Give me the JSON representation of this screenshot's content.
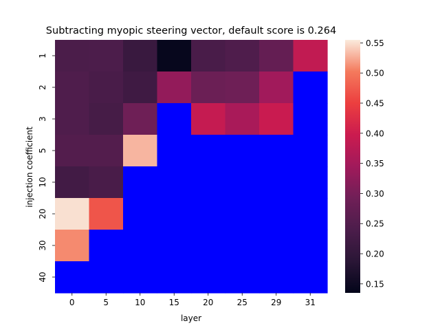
{
  "chart_data": {
    "type": "heatmap",
    "title": "Subtracting myopic steering vector, default score is 0.264",
    "xlabel": "layer",
    "ylabel": "injection coefficient",
    "x_categories": [
      "0",
      "5",
      "10",
      "15",
      "20",
      "25",
      "29",
      "31"
    ],
    "y_categories": [
      "1",
      "2",
      "3",
      "5",
      "10",
      "20",
      "30",
      "40"
    ],
    "values": [
      [
        0.238,
        0.24,
        0.21,
        0.14,
        0.235,
        0.245,
        0.275,
        0.385
      ],
      [
        0.245,
        0.235,
        0.22,
        0.33,
        0.285,
        0.29,
        0.345,
        null
      ],
      [
        0.245,
        0.23,
        0.29,
        null,
        0.39,
        0.355,
        0.395,
        null
      ],
      [
        0.25,
        0.25,
        0.53,
        null,
        null,
        null,
        null,
        null
      ],
      [
        0.225,
        0.235,
        null,
        null,
        null,
        null,
        null,
        null
      ],
      [
        0.55,
        0.47,
        null,
        null,
        null,
        null,
        null,
        null
      ],
      [
        0.51,
        null,
        null,
        null,
        null,
        null,
        null,
        null
      ],
      [
        null,
        null,
        null,
        null,
        null,
        null,
        null,
        null
      ]
    ],
    "missing_color": "#0000ff",
    "colormap": "rocket",
    "vmin": 0.135,
    "vmax": 0.555,
    "colorbar_ticks": [
      "0.15",
      "0.20",
      "0.25",
      "0.30",
      "0.35",
      "0.40",
      "0.45",
      "0.50",
      "0.55"
    ]
  }
}
